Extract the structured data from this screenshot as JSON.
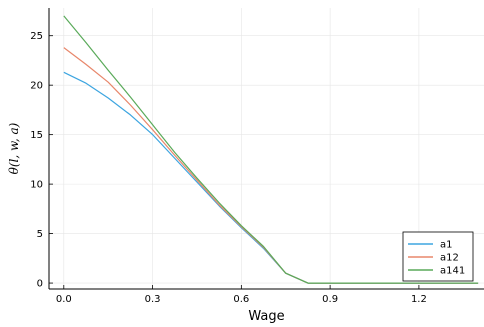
{
  "chart_data": {
    "type": "line",
    "title": "",
    "xlabel": "Wage",
    "ylabel": "θ(l, w, a)",
    "xlim": [
      -0.05,
      1.42
    ],
    "ylim": [
      -0.6,
      27.8
    ],
    "x_ticks": [
      0.0,
      0.3,
      0.6,
      0.9,
      1.2
    ],
    "x_tick_labels": [
      "0.0",
      "0.3",
      "0.6",
      "0.9",
      "1.2"
    ],
    "y_ticks": [
      0,
      5,
      10,
      15,
      20,
      25
    ],
    "y_tick_labels": [
      "0",
      "5",
      "10",
      "15",
      "20",
      "25"
    ],
    "grid": true,
    "legend_position": "bottom-right",
    "x": [
      0.0,
      0.075,
      0.15,
      0.225,
      0.3,
      0.375,
      0.45,
      0.525,
      0.6,
      0.675,
      0.75,
      0.825,
      0.9,
      0.975,
      1.05,
      1.125,
      1.2,
      1.275,
      1.35,
      1.4
    ],
    "series": [
      {
        "name": "a1",
        "color": "#3da5e0",
        "values": [
          21.3,
          20.2,
          18.7,
          17.0,
          15.0,
          12.6,
          10.2,
          7.8,
          5.6,
          3.5,
          1.0,
          0.0,
          0.0,
          0.0,
          0.0,
          0.0,
          0.0,
          0.0,
          0.0,
          0.0
        ]
      },
      {
        "name": "a12",
        "color": "#e8876b",
        "values": [
          23.8,
          22.1,
          20.3,
          18.0,
          15.5,
          12.9,
          10.4,
          7.9,
          5.7,
          3.6,
          1.0,
          0.0,
          0.0,
          0.0,
          0.0,
          0.0,
          0.0,
          0.0,
          0.0,
          0.0
        ]
      },
      {
        "name": "a141",
        "color": "#5aaa5a",
        "values": [
          27.0,
          24.3,
          21.5,
          18.8,
          16.0,
          13.2,
          10.6,
          8.1,
          5.8,
          3.7,
          1.0,
          0.0,
          0.0,
          0.0,
          0.0,
          0.0,
          0.0,
          0.0,
          0.0,
          0.0
        ]
      }
    ]
  }
}
